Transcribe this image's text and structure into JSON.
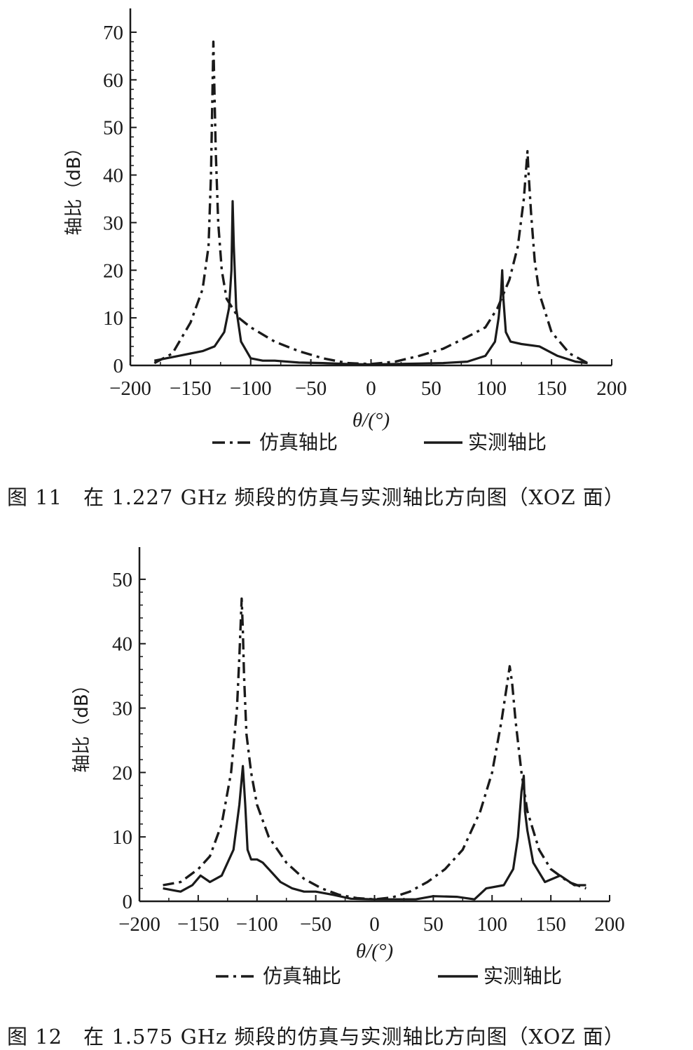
{
  "colors": {
    "line": "#1a1a1a",
    "background": "#ffffff"
  },
  "chart_data": [
    {
      "type": "line",
      "caption": "图 11　在 1.227 GHz 频段的仿真与实测轴比方向图（XOZ 面）",
      "xlabel": "θ/(°)",
      "ylabel": "轴比（dB）",
      "xlim": [
        -200,
        200
      ],
      "ylim": [
        0,
        75
      ],
      "xticks": [
        -200,
        -150,
        -100,
        -50,
        0,
        50,
        100,
        150,
        200
      ],
      "xtick_labels": [
        "−200",
        "−150",
        "−100",
        "−50",
        "0",
        "50",
        "100",
        "150",
        "200"
      ],
      "yticks": [
        0,
        10,
        20,
        30,
        40,
        50,
        60,
        70
      ],
      "ytick_labels": [
        "0",
        "10",
        "20",
        "30",
        "40",
        "50",
        "60",
        "70"
      ],
      "grid": false,
      "legend_position": "bottom",
      "series": [
        {
          "name": "仿真轴比",
          "style": "dash-dot",
          "x": [
            -180,
            -165,
            -150,
            -140,
            -135,
            -133,
            -131,
            -129,
            -127,
            -124,
            -120,
            -115,
            -110,
            -100,
            -80,
            -60,
            -40,
            -20,
            0,
            20,
            40,
            60,
            80,
            95,
            105,
            115,
            122,
            127,
            130,
            131,
            133,
            136,
            140,
            150,
            165,
            180
          ],
          "y": [
            0.5,
            2.5,
            9,
            16,
            25,
            40,
            68,
            45,
            30,
            20,
            14,
            12,
            10,
            8,
            5,
            3,
            1.5,
            0.5,
            0.3,
            0.8,
            2,
            3.5,
            6,
            8,
            12,
            18,
            25,
            35,
            45,
            40,
            32,
            22,
            15,
            7,
            2.5,
            0.5
          ]
        },
        {
          "name": "实测轴比",
          "style": "solid",
          "x": [
            -180,
            -160,
            -150,
            -140,
            -130,
            -122,
            -118,
            -116,
            -115,
            -114,
            -112,
            -108,
            -100,
            -90,
            -80,
            -60,
            -40,
            -20,
            0,
            20,
            40,
            60,
            80,
            95,
            103,
            106,
            108,
            109,
            110,
            112,
            116,
            125,
            140,
            155,
            170,
            180
          ],
          "y": [
            1,
            2,
            2.5,
            3,
            4,
            7,
            12,
            20,
            34.5,
            25,
            12,
            5,
            1.5,
            1,
            1,
            0.6,
            0.5,
            0.3,
            0.2,
            0.3,
            0.4,
            0.5,
            0.8,
            2,
            5,
            10,
            15,
            20,
            14,
            7,
            5,
            4.5,
            4,
            2,
            0.8,
            0.5
          ]
        }
      ]
    },
    {
      "type": "line",
      "caption": "图 12　在 1.575 GHz 频段的仿真与实测轴比方向图（XOZ 面）",
      "xlabel": "θ/(°)",
      "ylabel": "轴比（dB）",
      "xlim": [
        -200,
        200
      ],
      "ylim": [
        0,
        55
      ],
      "xticks": [
        -200,
        -150,
        -100,
        -50,
        0,
        50,
        100,
        150,
        200
      ],
      "xtick_labels": [
        "−200",
        "−150",
        "−100",
        "−50",
        "0",
        "50",
        "100",
        "150",
        "200"
      ],
      "yticks": [
        0,
        10,
        20,
        30,
        40,
        50
      ],
      "ytick_labels": [
        "0",
        "10",
        "20",
        "30",
        "40",
        "50"
      ],
      "grid": false,
      "legend_position": "bottom",
      "series": [
        {
          "name": "仿真轴比",
          "style": "dash-dot",
          "x": [
            -180,
            -165,
            -150,
            -140,
            -130,
            -122,
            -117,
            -115,
            -113,
            -112,
            -111,
            -109,
            -105,
            -100,
            -90,
            -75,
            -60,
            -45,
            -30,
            -15,
            0,
            15,
            30,
            45,
            60,
            75,
            90,
            100,
            108,
            113,
            115,
            117,
            120,
            125,
            130,
            140,
            150,
            165,
            180
          ],
          "y": [
            2.5,
            3,
            5,
            7,
            12,
            20,
            30,
            38,
            47,
            42,
            35,
            26,
            20,
            15,
            10,
            6,
            3.5,
            2,
            1,
            0.5,
            0.3,
            0.6,
            1.5,
            3,
            5,
            8,
            14,
            20,
            28,
            34,
            36.5,
            34,
            28,
            20,
            14,
            8,
            5,
            3,
            2
          ]
        },
        {
          "name": "实测轴比",
          "style": "solid",
          "x": [
            -180,
            -165,
            -155,
            -148,
            -140,
            -130,
            -120,
            -115,
            -112,
            -110,
            -108,
            -105,
            -100,
            -95,
            -90,
            -80,
            -70,
            -60,
            -50,
            -35,
            -20,
            0,
            20,
            35,
            50,
            70,
            85,
            95,
            110,
            118,
            122,
            125,
            127,
            128,
            130,
            135,
            145,
            158,
            170,
            180
          ],
          "y": [
            2,
            1.5,
            2.5,
            4,
            3,
            4,
            8,
            15,
            21,
            15,
            8,
            6.5,
            6.5,
            6,
            5,
            3,
            2,
            1.5,
            1.5,
            1,
            0.4,
            0.3,
            0.3,
            0.3,
            0.8,
            0.7,
            0.3,
            2,
            2.5,
            5,
            10,
            17,
            19.5,
            14,
            11,
            6,
            3,
            4,
            2.5,
            2.5
          ]
        }
      ]
    }
  ]
}
